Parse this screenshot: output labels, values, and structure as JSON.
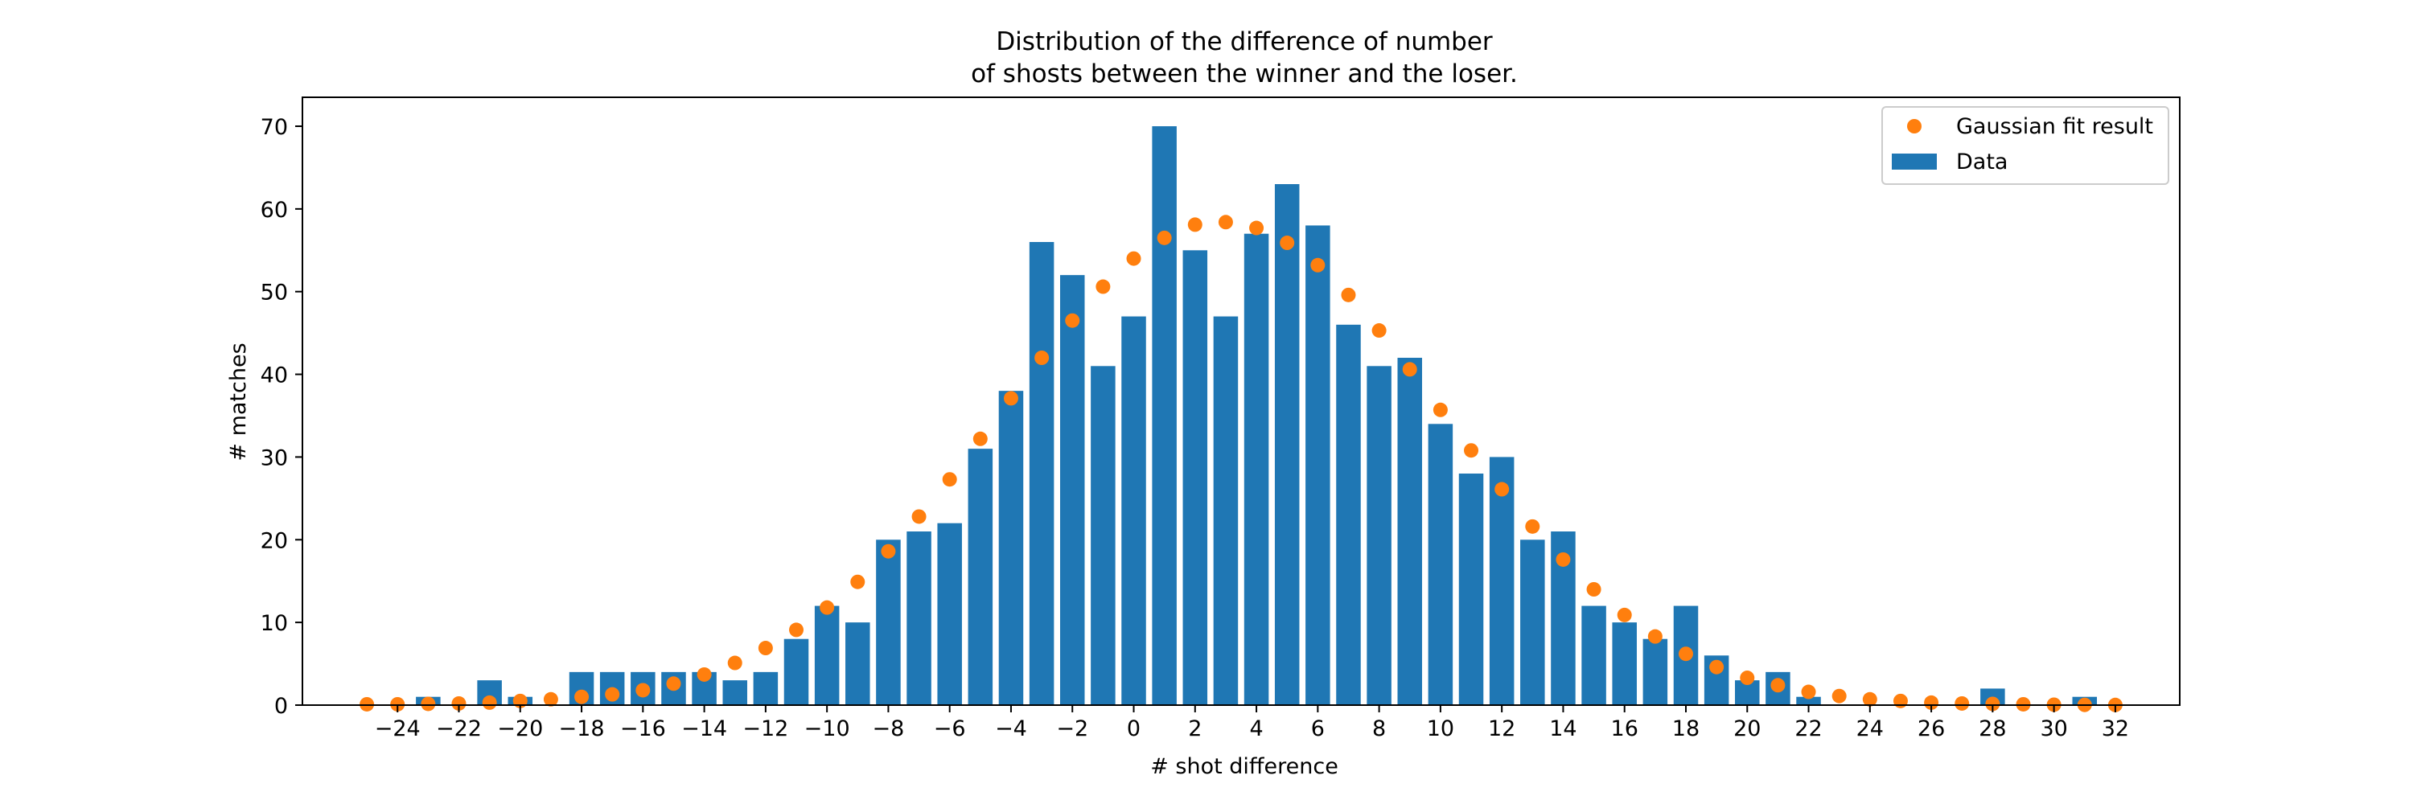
{
  "chart_data": {
    "type": "bar",
    "title_line1": "Distribution of the difference of number",
    "title_line2": "of shosts between the winner and the loser.",
    "xlabel": "# shot difference",
    "ylabel": "# matches",
    "xlim": [
      -27.1,
      34.1
    ],
    "ylim": [
      0,
      73.5
    ],
    "xticks": [
      -24,
      -22,
      -20,
      -18,
      -16,
      -14,
      -12,
      -10,
      -8,
      -6,
      -4,
      -2,
      0,
      2,
      4,
      6,
      8,
      10,
      12,
      14,
      16,
      18,
      20,
      22,
      24,
      26,
      28,
      30,
      32
    ],
    "yticks": [
      0,
      10,
      20,
      30,
      40,
      50,
      60,
      70
    ],
    "legend_position": "top-right",
    "colors": {
      "bar": "#1f77b4",
      "fit": "#ff7f0e"
    },
    "series": [
      {
        "name": "Data",
        "kind": "bar",
        "x": [
          -25,
          -24,
          -23,
          -22,
          -21,
          -20,
          -19,
          -18,
          -17,
          -16,
          -15,
          -14,
          -13,
          -12,
          -11,
          -10,
          -9,
          -8,
          -7,
          -6,
          -5,
          -4,
          -3,
          -2,
          -1,
          0,
          1,
          2,
          3,
          4,
          5,
          6,
          7,
          8,
          9,
          10,
          11,
          12,
          13,
          14,
          15,
          16,
          17,
          18,
          19,
          20,
          21,
          22,
          23,
          24,
          25,
          26,
          27,
          28,
          29,
          30,
          31,
          32
        ],
        "values": [
          0,
          0,
          1,
          0,
          3,
          1,
          0,
          4,
          4,
          4,
          4,
          4,
          3,
          4,
          8,
          12,
          10,
          20,
          21,
          22,
          31,
          38,
          56,
          52,
          41,
          47,
          70,
          55,
          47,
          57,
          63,
          58,
          46,
          41,
          42,
          34,
          28,
          30,
          20,
          21,
          12,
          10,
          8,
          12,
          6,
          3,
          4,
          1,
          0,
          0,
          0,
          0,
          0,
          2,
          0,
          0,
          1,
          0
        ]
      },
      {
        "name": "Gaussian fit result",
        "kind": "scatter",
        "x": [
          -25,
          -24,
          -23,
          -22,
          -21,
          -20,
          -19,
          -18,
          -17,
          -16,
          -15,
          -14,
          -13,
          -12,
          -11,
          -10,
          -9,
          -8,
          -7,
          -6,
          -5,
          -4,
          -3,
          -2,
          -1,
          0,
          1,
          2,
          3,
          4,
          5,
          6,
          7,
          8,
          9,
          10,
          11,
          12,
          13,
          14,
          15,
          16,
          17,
          18,
          19,
          20,
          21,
          22,
          23,
          24,
          25,
          26,
          27,
          28,
          29,
          30,
          31,
          32
        ],
        "values": [
          0.1,
          0.1,
          0.15,
          0.2,
          0.3,
          0.5,
          0.7,
          1.0,
          1.3,
          1.8,
          2.6,
          3.7,
          5.1,
          6.9,
          9.1,
          11.8,
          14.9,
          18.6,
          22.8,
          27.3,
          32.2,
          37.1,
          42.0,
          46.5,
          50.6,
          54.0,
          56.5,
          58.1,
          58.4,
          57.7,
          55.9,
          53.2,
          49.6,
          45.3,
          40.6,
          35.7,
          30.8,
          26.1,
          21.6,
          17.6,
          14.0,
          10.9,
          8.3,
          6.2,
          4.6,
          3.3,
          2.4,
          1.6,
          1.1,
          0.7,
          0.5,
          0.3,
          0.2,
          0.15,
          0.1,
          0.05,
          0.03,
          0.02
        ]
      }
    ]
  }
}
